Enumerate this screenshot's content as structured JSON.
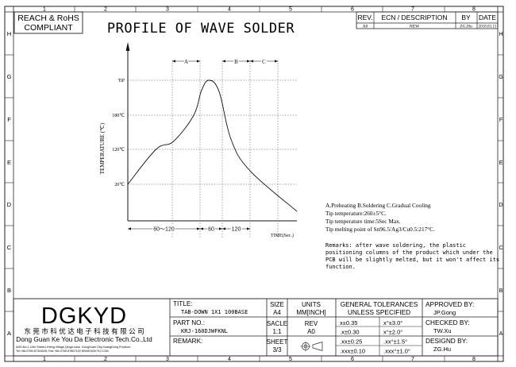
{
  "sheet": {
    "col_numbers": [
      "1",
      "2",
      "3",
      "4",
      "5",
      "6",
      "7",
      "8"
    ],
    "row_letters": [
      "H",
      "G",
      "F",
      "E",
      "D",
      "C",
      "B",
      "A"
    ]
  },
  "compliance": {
    "line1": "REACH & RoHS",
    "line2": "COMPLIANT"
  },
  "title": "PROFILE  OF  WAVE  SOLDER",
  "revision_table": {
    "headers": [
      "REV.",
      "ECN / DESCRIPTION",
      "BY",
      "DATE"
    ],
    "row": [
      "A0",
      "NEW",
      "ZG.Hu",
      "2018.03.13"
    ]
  },
  "chart_data": {
    "type": "line",
    "title": "PROFILE  OF  WAVE  SOLDER",
    "ylabel": "TEMPERATURE (℃)",
    "xlabel": "TIME(Sec.)",
    "y_ticks": [
      "20℃",
      "120℃",
      "180℃",
      "TiP"
    ],
    "x_segments": [
      {
        "label": "60〜120"
      },
      {
        "label": "60"
      },
      {
        "label": "120"
      }
    ],
    "phases": [
      {
        "label": "A"
      },
      {
        "label": "B"
      },
      {
        "label": "C"
      }
    ],
    "series": [
      {
        "points": [
          {
            "t": 0,
            "temp": 20
          },
          {
            "t": 0.167,
            "temp": 120
          },
          {
            "t": 0.27,
            "temp": 134
          },
          {
            "t": 0.39,
            "temp": 180
          },
          {
            "t": 0.435,
            "temp": 236
          },
          {
            "t": 0.48,
            "temp": 260
          },
          {
            "t": 0.54,
            "temp": 234
          },
          {
            "t": 0.61,
            "temp": 138
          },
          {
            "t": 0.72,
            "temp": 60
          },
          {
            "t": 1.0,
            "temp": -50
          }
        ]
      }
    ]
  },
  "notes": {
    "line1": "A.Preheating  B.Soldering  C.Gradual Cooling",
    "line2": "Tip temperature:260±5°C.",
    "line3": "Tip temperature time:5Sec Max.",
    "line4": "Tip melting point of Sn96.5/Ag3/Cu0.5:217°C.",
    "remarks1": "Remarks: after wave soldering, the plastic",
    "remarks2": "positioning columns of the product  which under the",
    "remarks3": "PCB will be slightly melted, but it won't affect its",
    "remarks4": "function."
  },
  "title_block": {
    "logo": "DGKYD",
    "company_cn": "东 莞 市 科 优 达 电 子 科 技 有 限 公 司",
    "company_en": "Dong Guan Ke You Da Electronic Tech.Co.,Ltd",
    "address": "ADD:No.1 LiHe Street,LiHeng Village,Qingxi town, DongGuan City,GuangDong Province",
    "contact": "Tel:+86-0769-87316026; Fax:+86-0769-87867129  WWW.DGKYD.COM",
    "title_label": "TITLE:",
    "title_value": "TAB-DOWN 1X1 100BASE",
    "part_label": "PART NO.:",
    "part_value": "KRJ-160DJWFKNL",
    "remark_label": "REMARK:",
    "size_label": "SIZE",
    "size_value": "A4",
    "scale_label": "SACLE",
    "scale_value": "1:1",
    "sheet_label": "SHEET",
    "sheet_value": "3/3",
    "units_label": "UNITS",
    "units_value": "MM[INCH]",
    "rev_label": "REV",
    "rev_value": "A0",
    "tol_title1": "GENERAL TOLERANCES",
    "tol_title2": "UNLESS SPECIFIED",
    "tol_left": [
      "x±0.35",
      ".x±0.30",
      ".xx±0.25",
      ".xxx±0.10"
    ],
    "tol_right": [
      "x°±3.0°",
      "x°±2.0°",
      ".xx°±1.5°",
      ".xxx°±1.0°"
    ],
    "approved_label": "APPROVED BY:",
    "approved_value": "JP.Gong",
    "checked_label": "CHECKED BY:",
    "checked_value": "TW.Xu",
    "designed_label": "DESIGND BY:",
    "designed_value": "ZG.Hu"
  }
}
